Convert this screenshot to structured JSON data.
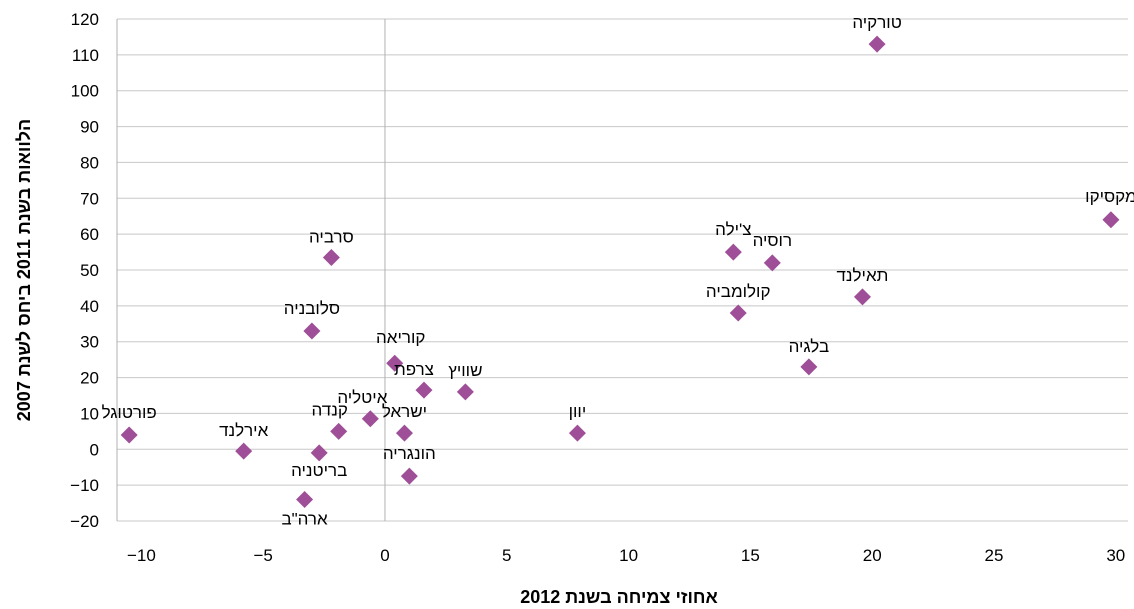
{
  "chart_data": {
    "type": "scatter",
    "xlabel": "אחוזי צמיחה בשנת 2012",
    "ylabel": "הלוואות בשנת 2011 ביחס לשנת 2007",
    "xlim": [
      -11,
      30.5
    ],
    "ylim": [
      -20,
      120
    ],
    "xticks": [
      -10,
      -5,
      0,
      5,
      10,
      15,
      20,
      25,
      30
    ],
    "yticks": [
      -20,
      -10,
      0,
      10,
      20,
      30,
      40,
      50,
      60,
      70,
      80,
      90,
      100,
      110,
      120
    ],
    "xtick_labels": [
      "‎−10",
      "‎−5",
      "0",
      "5",
      "10",
      "15",
      "20",
      "25",
      "30"
    ],
    "ytick_labels": [
      "‎−20",
      "‎−10",
      "0",
      "10",
      "20",
      "30",
      "40",
      "50",
      "60",
      "70",
      "80",
      "90",
      "100",
      "110",
      "120"
    ],
    "marker_color": "#9e4f97",
    "grid": "horizontal",
    "points": [
      {
        "label": "פורטוגל",
        "x": -10.5,
        "y": 4.0
      },
      {
        "label": "אירלנד",
        "x": -5.8,
        "y": -0.5
      },
      {
        "label": "בריטניה",
        "x": -2.7,
        "y": -1.0
      },
      {
        "label": "ארה\"ב",
        "x": -3.3,
        "y": -14.0
      },
      {
        "label": "קנדה",
        "x": -1.9,
        "y": 5.0
      },
      {
        "label": "סלובניה",
        "x": -3.0,
        "y": 33.0
      },
      {
        "label": "סרביה",
        "x": -2.2,
        "y": 53.5
      },
      {
        "label": "איטליה",
        "x": -0.6,
        "y": 8.5
      },
      {
        "label": "קוריאה",
        "x": 0.4,
        "y": 24.0
      },
      {
        "label": "ישראל",
        "x": 0.8,
        "y": 4.5
      },
      {
        "label": "הונגריה",
        "x": 1.0,
        "y": -7.5
      },
      {
        "label": "צרפת",
        "x": 1.6,
        "y": 16.5
      },
      {
        "label": "שוויץ",
        "x": 3.3,
        "y": 16.0
      },
      {
        "label": "יוון",
        "x": 7.9,
        "y": 4.5
      },
      {
        "label": "צ'ילה",
        "x": 14.3,
        "y": 55.0
      },
      {
        "label": "קולומביה",
        "x": 14.5,
        "y": 38.0
      },
      {
        "label": "רוסיה",
        "x": 15.9,
        "y": 52.0
      },
      {
        "label": "בלגיה",
        "x": 17.4,
        "y": 23.0
      },
      {
        "label": "תאילנד",
        "x": 19.6,
        "y": 42.5
      },
      {
        "label": "טורקיה",
        "x": 20.2,
        "y": 113.0
      },
      {
        "label": "מקסיקו",
        "x": 29.8,
        "y": 64.0
      }
    ]
  }
}
